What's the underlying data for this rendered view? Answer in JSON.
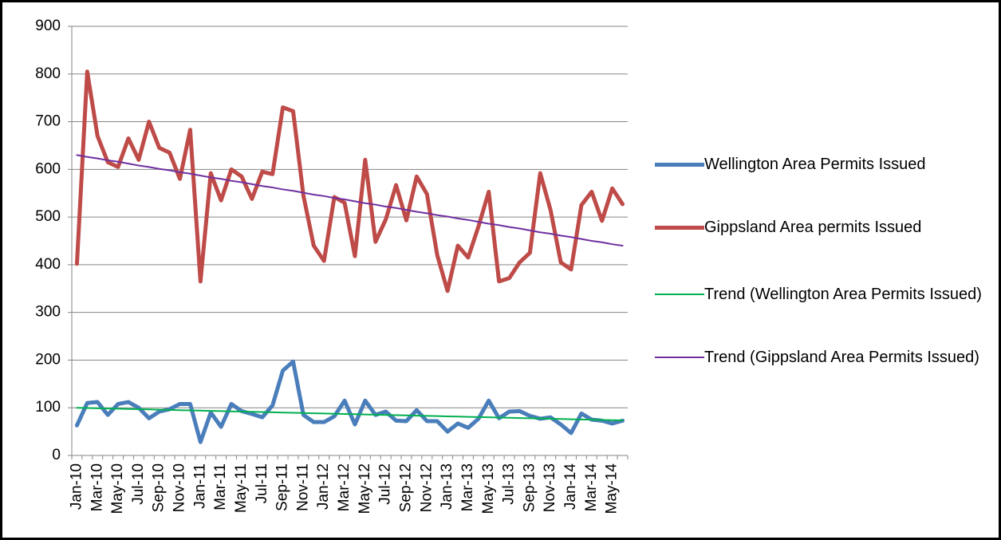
{
  "chart_data": {
    "type": "line",
    "categories": [
      "Jan-10",
      null,
      "Mar-10",
      null,
      "May-10",
      null,
      "Jul-10",
      null,
      "Sep-10",
      null,
      "Nov-10",
      null,
      "Jan-11",
      null,
      "Mar-11",
      null,
      "May-11",
      null,
      "Jul-11",
      null,
      "Sep-11",
      null,
      "Nov-11",
      null,
      "Jan-12",
      null,
      "Mar-12",
      null,
      "May-12",
      null,
      "Jul-12",
      null,
      "Sep-12",
      null,
      "Nov-12",
      null,
      "Jan-13",
      null,
      "Mar-13",
      null,
      "May-13",
      null,
      "Jul-13",
      null,
      "Sep-13",
      null,
      "Nov-13",
      null,
      "Jan-14",
      null,
      "Mar-14",
      null,
      "May-14",
      null
    ],
    "series": [
      {
        "name": "Wellington Area Permits Issued",
        "color": "#4a7ebb",
        "width": 5,
        "values": [
          63,
          110,
          112,
          85,
          108,
          112,
          100,
          78,
          92,
          97,
          108,
          108,
          28,
          90,
          60,
          108,
          93,
          87,
          80,
          105,
          178,
          197,
          85,
          70,
          70,
          82,
          115,
          65,
          115,
          85,
          92,
          73,
          72,
          95,
          72,
          72,
          50,
          67,
          58,
          77,
          115,
          78,
          92,
          93,
          83,
          77,
          80,
          65,
          47,
          88,
          75,
          73,
          67,
          73
        ]
      },
      {
        "name": "Gippsland Area permits Issued",
        "color": "#be4b48",
        "width": 5,
        "values": [
          402,
          805,
          670,
          615,
          605,
          665,
          620,
          700,
          645,
          635,
          580,
          683,
          365,
          592,
          535,
          600,
          585,
          538,
          595,
          590,
          730,
          722,
          545,
          440,
          408,
          542,
          530,
          418,
          620,
          448,
          495,
          567,
          493,
          585,
          548,
          420,
          345,
          440,
          415,
          480,
          553,
          365,
          372,
          405,
          425,
          592,
          515,
          405,
          390,
          525,
          553,
          492,
          560,
          527
        ]
      },
      {
        "name": "Trend (Wellington Area Permits Issued)",
        "color": "#00b050",
        "width": 2,
        "values": [
          100,
          99.5,
          99,
          98.5,
          98,
          97.5,
          97,
          96.5,
          96,
          95.5,
          95,
          94.5,
          94,
          93.5,
          93,
          92.5,
          92,
          91.5,
          91,
          90.5,
          90,
          89.5,
          89,
          88.5,
          88,
          87.5,
          87,
          86.5,
          86,
          85.5,
          85,
          84.5,
          84,
          83.5,
          83,
          82.5,
          82,
          81.5,
          81,
          80.5,
          80,
          79.5,
          79,
          78.5,
          78,
          77.5,
          77,
          76.5,
          76,
          75.5,
          75,
          74.5,
          74,
          73.5
        ]
      },
      {
        "name": "Trend (Gippsland Area Permits Issued)",
        "color": "#7030a0",
        "width": 2,
        "values": [
          630,
          626,
          623,
          619,
          616,
          612,
          608,
          605,
          601,
          598,
          594,
          591,
          587,
          583,
          580,
          576,
          573,
          569,
          565,
          562,
          558,
          555,
          551,
          547,
          544,
          540,
          537,
          533,
          529,
          526,
          522,
          519,
          515,
          511,
          508,
          504,
          501,
          497,
          494,
          490,
          486,
          483,
          479,
          476,
          472,
          468,
          465,
          461,
          458,
          454,
          450,
          447,
          443,
          440
        ]
      }
    ],
    "ylim": [
      0,
      900
    ],
    "yticks": [
      0,
      100,
      200,
      300,
      400,
      500,
      600,
      700,
      800,
      900
    ],
    "grid": true,
    "legend": "right"
  }
}
